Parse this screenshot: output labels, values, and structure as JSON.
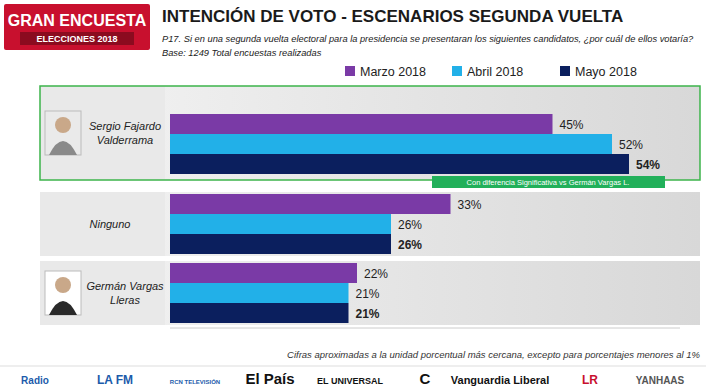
{
  "chart_data": {
    "type": "bar",
    "orientation": "horizontal",
    "logo": [
      "GRAN ENCUESTA",
      "ELECCIONES 2018"
    ],
    "title": "INTENCIÓN DE VOTO - ESCENARIOS SEGUNDA VUELTA",
    "subtitle": "P17. Si en una segunda vuelta electoral para la presidencia se presentaran los siguientes candidatos, ¿por cuál de ellos votaría?",
    "base": "Base: 1249 Total encuestas realizadas",
    "categories": [
      "Sergio Fajardo Valderrama",
      "Ninguno",
      "Germán Vargas Lleras"
    ],
    "series": [
      {
        "name": "Marzo 2018",
        "color": "#7a3aa6",
        "values": [
          45,
          33,
          22
        ],
        "value_labels": [
          "45%",
          "33%",
          "22%"
        ]
      },
      {
        "name": "Abril 2018",
        "color": "#22b0e8",
        "values": [
          52,
          26,
          21
        ],
        "value_labels": [
          "52%",
          "26%",
          "21%"
        ]
      },
      {
        "name": "Mayo 2018",
        "color": "#0b1f5e",
        "values": [
          54,
          26,
          21
        ],
        "value_labels": [
          "54%",
          "26%",
          "21%"
        ]
      }
    ],
    "xlim": [
      0,
      60
    ],
    "tick_labels": false,
    "grid": false,
    "legend": "top",
    "data_labels": true,
    "annotation": "Con diferencia Significativa vs Germán Vargas L.",
    "footnote": "Cifras aproximadas a la unidad porcentual más cercana, excepto para porcentajes menores al 1%",
    "sources": [
      "Radio",
      "LA FM",
      "RCN TELEVISIÓN",
      "El País",
      "EL UNIVERSAL",
      "C",
      "Vanguardia Liberal",
      "LR",
      "YANHAAS"
    ]
  }
}
